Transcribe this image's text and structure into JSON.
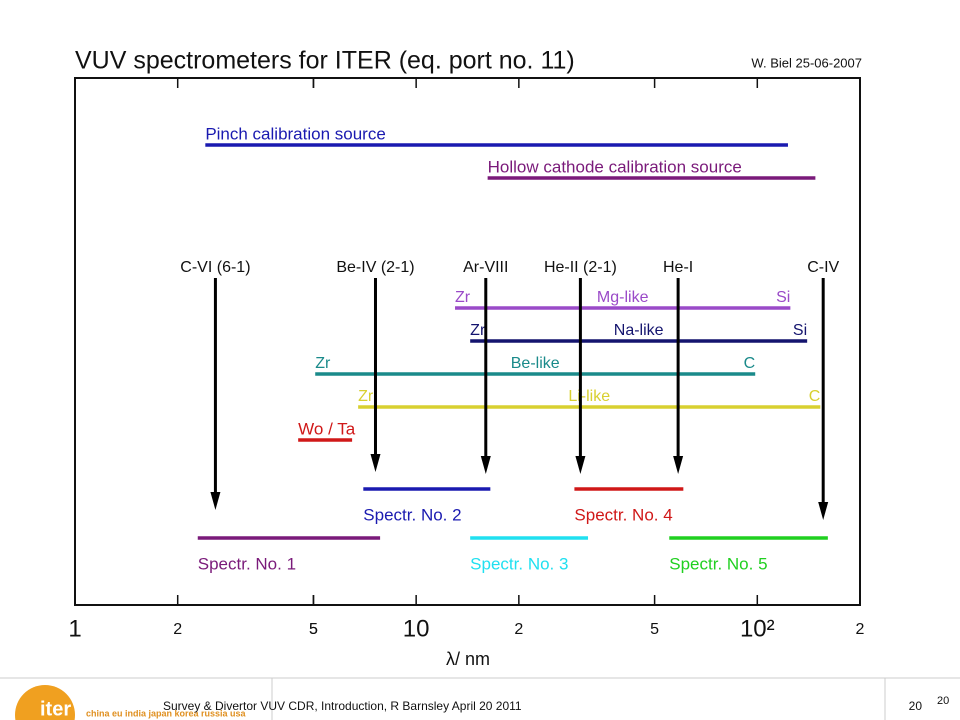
{
  "chart_data": {
    "type": "range",
    "title": "VUV spectrometers for ITER (eq. port no. 11)",
    "subtitle": "W. Biel 25-06-2007",
    "xlabel": "λ/ nm",
    "xlim": [
      1,
      200
    ],
    "log_x": true,
    "xticks": [
      1,
      2,
      5,
      10,
      {
        "value": 20,
        "label": "2"
      },
      5,
      {
        "value": 50,
        "label": "5"
      },
      {
        "value": 100,
        "label": "10²"
      },
      {
        "value": 200,
        "label": "2"
      }
    ],
    "ranges": [
      {
        "name": "Pinch calibration source",
        "color": "#1a1ab0",
        "start": 2.41,
        "end": 123
      },
      {
        "name": "Hollow cathode calibration source",
        "color": "#7a1a7a",
        "start": 16.2,
        "end": 148
      },
      {
        "labels": [
          "Zr",
          "Mg-like",
          "Si"
        ],
        "color": "#9a4ac8",
        "start": 13.0,
        "end": 125
      },
      {
        "labels": [
          "Zr",
          "Na-like",
          "Si"
        ],
        "color": "#14146e",
        "start": 14.4,
        "end": 140
      },
      {
        "labels": [
          "Zr",
          "Be-like",
          "C"
        ],
        "color": "#1a8a8a",
        "start": 5.06,
        "end": 98.6
      },
      {
        "labels": [
          "Zr",
          "Li-like",
          "C"
        ],
        "color": "#d8d030",
        "start": 6.76,
        "end": 153
      },
      {
        "name": "Wo / Ta",
        "color": "#d01818",
        "start": 4.51,
        "end": 6.49
      },
      {
        "name": "Spectr. No. 1",
        "color": "#7a1a7a",
        "start": 2.29,
        "end": 7.84
      },
      {
        "name": "Spectr. No. 2",
        "color": "#1a1ab0",
        "start": 7.0,
        "end": 16.5
      },
      {
        "name": "Spectr. No. 3",
        "color": "#20e0f0",
        "start": 14.4,
        "end": 31.9
      },
      {
        "name": "Spectr. No. 4",
        "color": "#d01818",
        "start": 29.1,
        "end": 60.7
      },
      {
        "name": "Spectr. No. 5",
        "color": "#20d020",
        "start": 55.2,
        "end": 161
      }
    ],
    "markers": [
      {
        "name": "C-VI (6-1)",
        "x": 2.58
      },
      {
        "name": "Be-IV (2-1)",
        "x": 7.6
      },
      {
        "name": "Ar-VIII",
        "x": 16.0
      },
      {
        "name": "He-II (2-1)",
        "x": 30.3
      },
      {
        "name": "He-I",
        "x": 58.6
      },
      {
        "name": "C-IV",
        "x": 156
      }
    ]
  },
  "footer": {
    "text": "Survey & Divertor VUV CDR, Introduction, R Barnsley April 20 2011",
    "page": "20",
    "page_corner": "20",
    "logo": "iter",
    "members": "china eu india japan korea russia usa"
  }
}
